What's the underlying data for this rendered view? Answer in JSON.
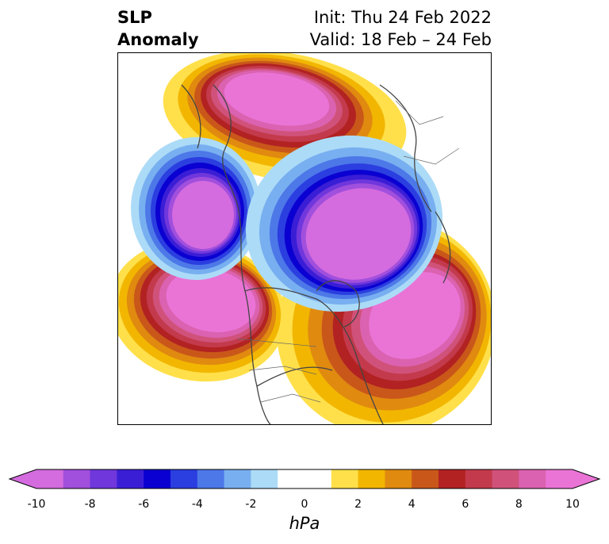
{
  "title": {
    "left_line1": "SLP",
    "left_line2": "Anomaly",
    "right_line1": "Init: Thu 24 Feb 2022",
    "right_line2": "Valid: 18 Feb – 24 Feb"
  },
  "colorbar": {
    "units": "hPa",
    "tick_labels": [
      "-10",
      "-8",
      "-6",
      "-4",
      "-2",
      "0",
      "2",
      "4",
      "6",
      "8",
      "10"
    ],
    "bins": [
      {
        "from": -10,
        "to": -9,
        "color": "#d46bdf"
      },
      {
        "from": -9,
        "to": -8,
        "color": "#a14fdd"
      },
      {
        "from": -8,
        "to": -7,
        "color": "#6f37dc"
      },
      {
        "from": -7,
        "to": -6,
        "color": "#3a1ed6"
      },
      {
        "from": -6,
        "to": -5,
        "color": "#0a00d1"
      },
      {
        "from": -5,
        "to": -4,
        "color": "#2b3ee0"
      },
      {
        "from": -4,
        "to": -3,
        "color": "#4d78e8"
      },
      {
        "from": -3,
        "to": -2,
        "color": "#78aff0"
      },
      {
        "from": -2,
        "to": -1,
        "color": "#acdbf7"
      },
      {
        "from": -1,
        "to": 1,
        "color": "#ffffff"
      },
      {
        "from": 1,
        "to": 2,
        "color": "#ffe04a"
      },
      {
        "from": 2,
        "to": 3,
        "color": "#f2b600"
      },
      {
        "from": 3,
        "to": 4,
        "color": "#e08a10"
      },
      {
        "from": 4,
        "to": 5,
        "color": "#c9571a"
      },
      {
        "from": 5,
        "to": 6,
        "color": "#b22222"
      },
      {
        "from": 6,
        "to": 7,
        "color": "#c33a4c"
      },
      {
        "from": 7,
        "to": 8,
        "color": "#d0527a"
      },
      {
        "from": 8,
        "to": 9,
        "color": "#db62b0"
      },
      {
        "from": 9,
        "to": 10,
        "color": "#ea74d6"
      }
    ],
    "extend_low_color": "#d46bdf",
    "extend_high_color": "#ea74d6"
  },
  "map": {
    "projection": "north-polar-stereographic",
    "features": [
      {
        "name": "north-atlantic-high",
        "type": "positive",
        "peak_hpa": 10
      },
      {
        "name": "western-us-high",
        "type": "positive",
        "peak_hpa": 10
      },
      {
        "name": "eurasian-arctic-high",
        "type": "positive",
        "peak_hpa": 10
      },
      {
        "name": "north-pacific-low",
        "type": "negative",
        "peak_hpa": -10
      },
      {
        "name": "arctic-ocean-low",
        "type": "negative",
        "peak_hpa": -10
      }
    ]
  }
}
